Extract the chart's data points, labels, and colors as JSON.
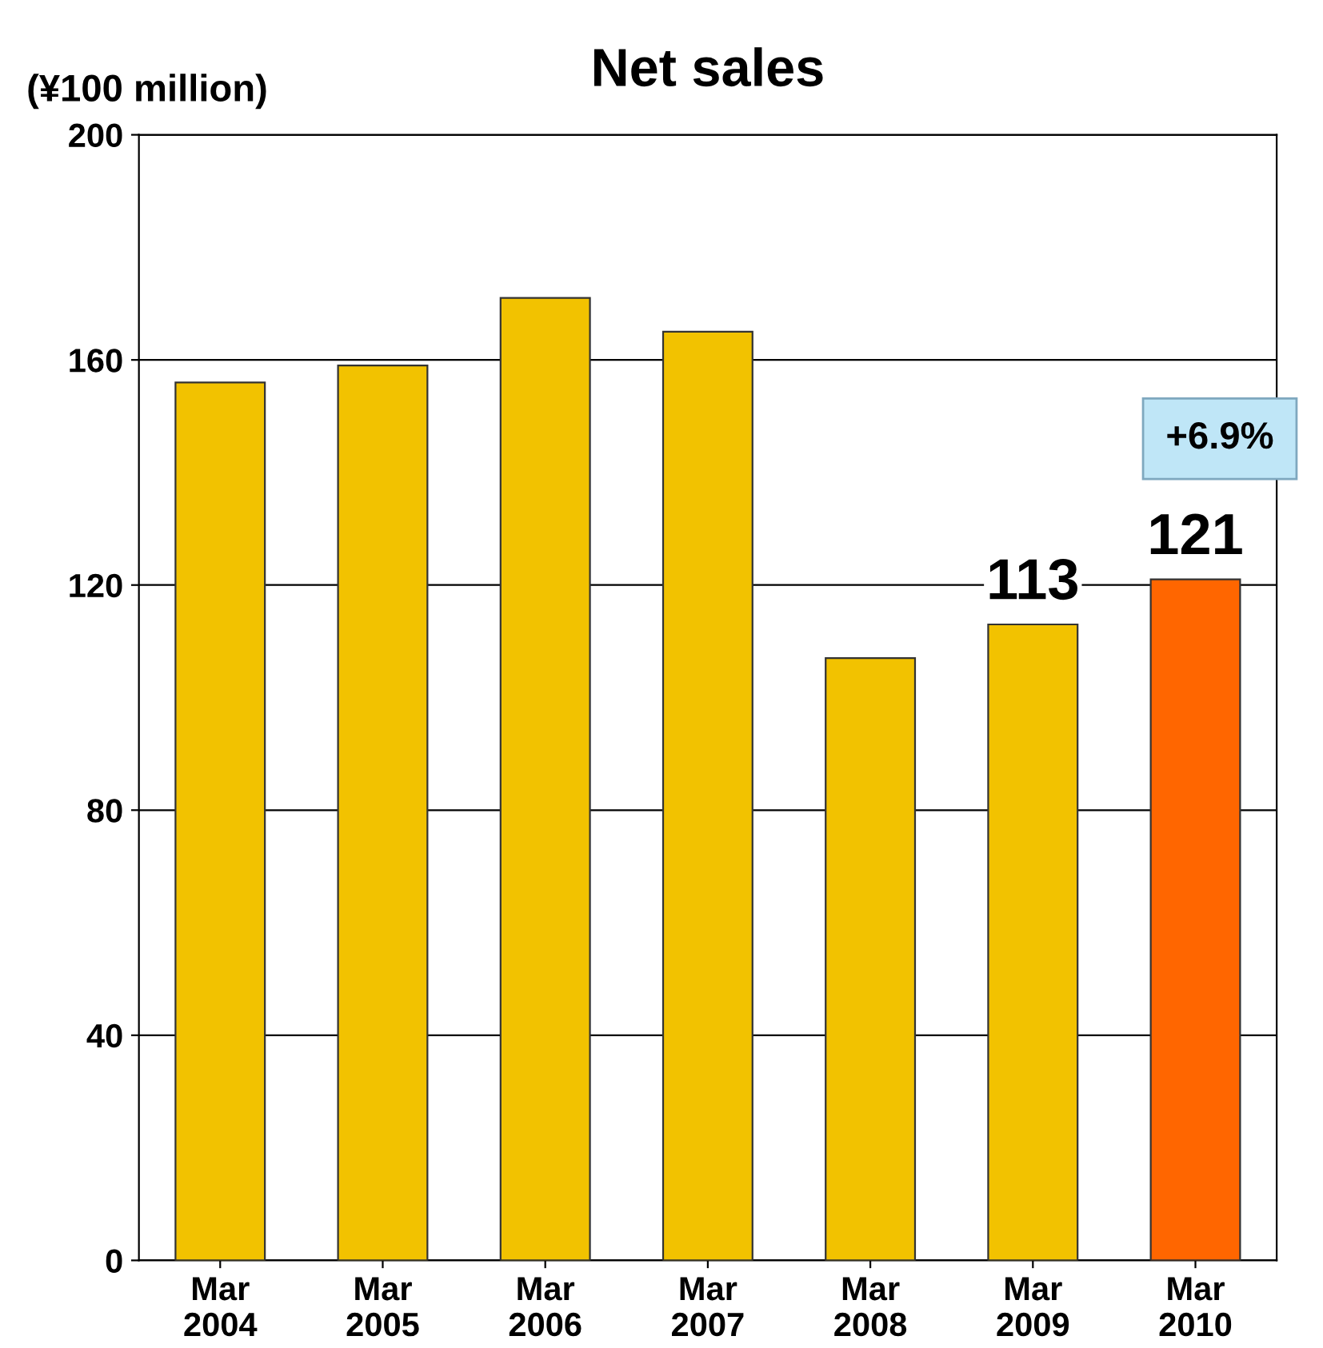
{
  "chart_data": {
    "type": "bar",
    "title": "Net sales",
    "ylabel": "(¥100 million)",
    "categories": [
      "Mar\n2004",
      "Mar\n2005",
      "Mar\n2006",
      "Mar\n2007",
      "Mar\n2008",
      "Mar\n2009",
      "Mar\n2010"
    ],
    "values": [
      156,
      159,
      171,
      165,
      107,
      113,
      121
    ],
    "colors": [
      "#f2c200",
      "#f2c200",
      "#f2c200",
      "#f2c200",
      "#f2c200",
      "#f2c200",
      "#ff6600"
    ],
    "value_labels": [
      null,
      null,
      null,
      null,
      null,
      "113",
      "121"
    ],
    "annotations": [
      "+6.9%"
    ],
    "ylim": [
      0,
      200
    ],
    "yticks": [
      0,
      40,
      80,
      120,
      160,
      200
    ],
    "grid": "y"
  }
}
